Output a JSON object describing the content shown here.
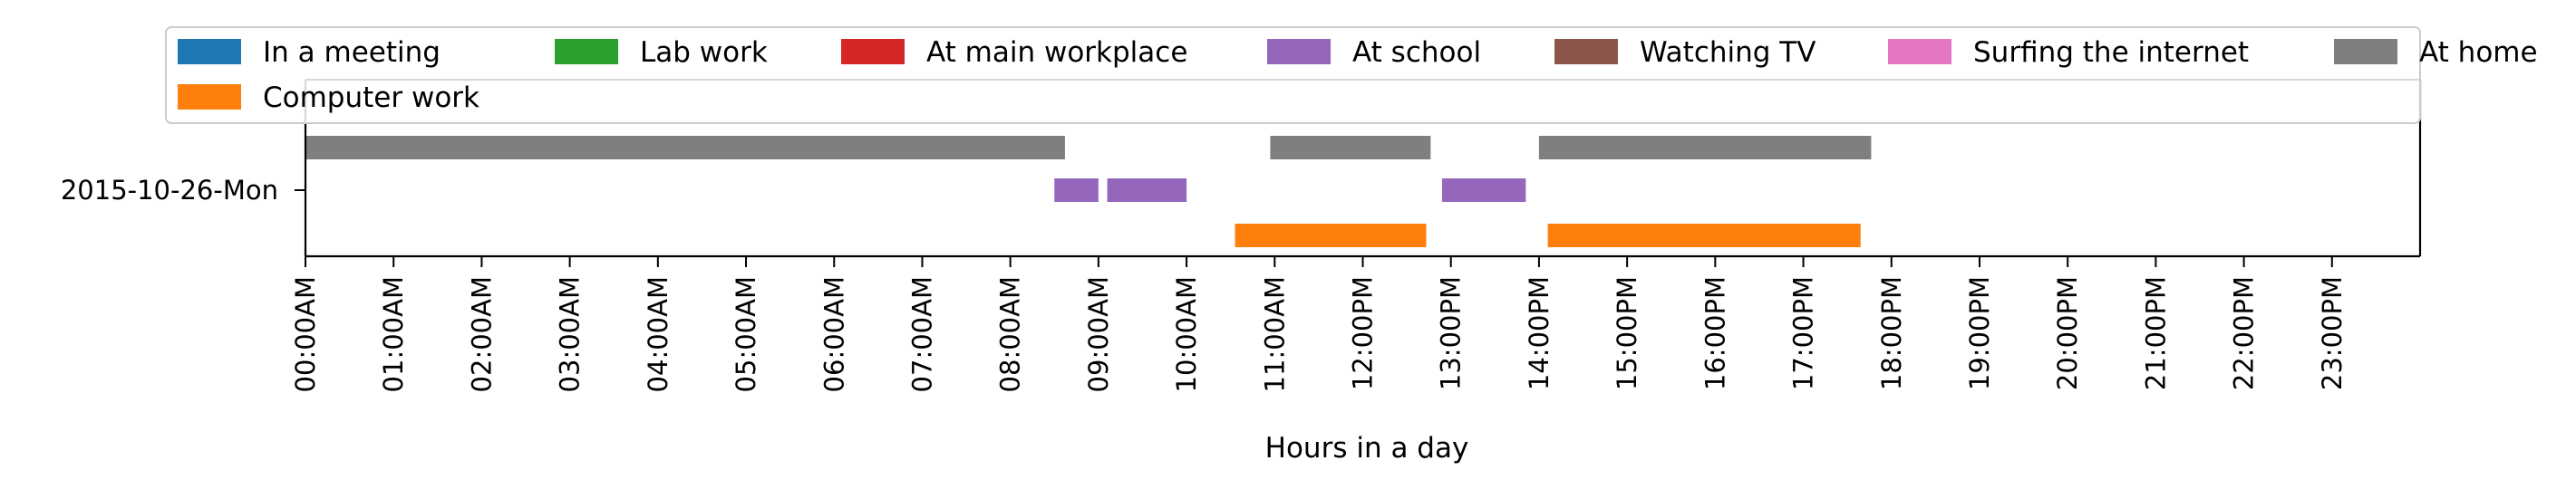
{
  "chart_data": {
    "type": "gantt",
    "xlabel": "Hours in a day",
    "ylabel": "",
    "xlim": [
      0,
      24
    ],
    "x_ticks": [
      "00:00AM",
      "01:00AM",
      "02:00AM",
      "03:00AM",
      "04:00AM",
      "05:00AM",
      "06:00AM",
      "07:00AM",
      "08:00AM",
      "09:00AM",
      "10:00AM",
      "11:00AM",
      "12:00PM",
      "13:00PM",
      "14:00PM",
      "15:00PM",
      "16:00PM",
      "17:00PM",
      "18:00PM",
      "19:00PM",
      "20:00PM",
      "21:00PM",
      "22:00PM",
      "23:00PM"
    ],
    "y_categories": [
      "2015-10-26-Mon"
    ],
    "legend_position": "top",
    "grid": false,
    "series": [
      {
        "name": "In a meeting",
        "color": "#1f77b4",
        "lane": 1,
        "intervals": []
      },
      {
        "name": "Lab work",
        "color": "#2ca02c",
        "lane": 1,
        "intervals": []
      },
      {
        "name": "At main workplace",
        "color": "#d62728",
        "lane": 1,
        "intervals": []
      },
      {
        "name": "At school",
        "color": "#9467bd",
        "lane": 1,
        "intervals": [
          [
            8.5,
            9.0
          ],
          [
            9.1,
            10.0
          ],
          [
            12.9,
            13.85
          ]
        ]
      },
      {
        "name": "Watching TV",
        "color": "#8c564b",
        "lane": 1,
        "intervals": []
      },
      {
        "name": "Surfing the internet",
        "color": "#e377c2",
        "lane": 1,
        "intervals": []
      },
      {
        "name": "At home",
        "color": "#7f7f7f",
        "lane": 0,
        "intervals": [
          [
            0.0,
            8.62
          ],
          [
            10.95,
            12.77
          ],
          [
            14.0,
            17.77
          ]
        ]
      },
      {
        "name": "Computer work",
        "color": "#ff7f0e",
        "lane": 2,
        "intervals": [
          [
            10.55,
            12.72
          ],
          [
            14.1,
            17.65
          ]
        ]
      }
    ]
  }
}
